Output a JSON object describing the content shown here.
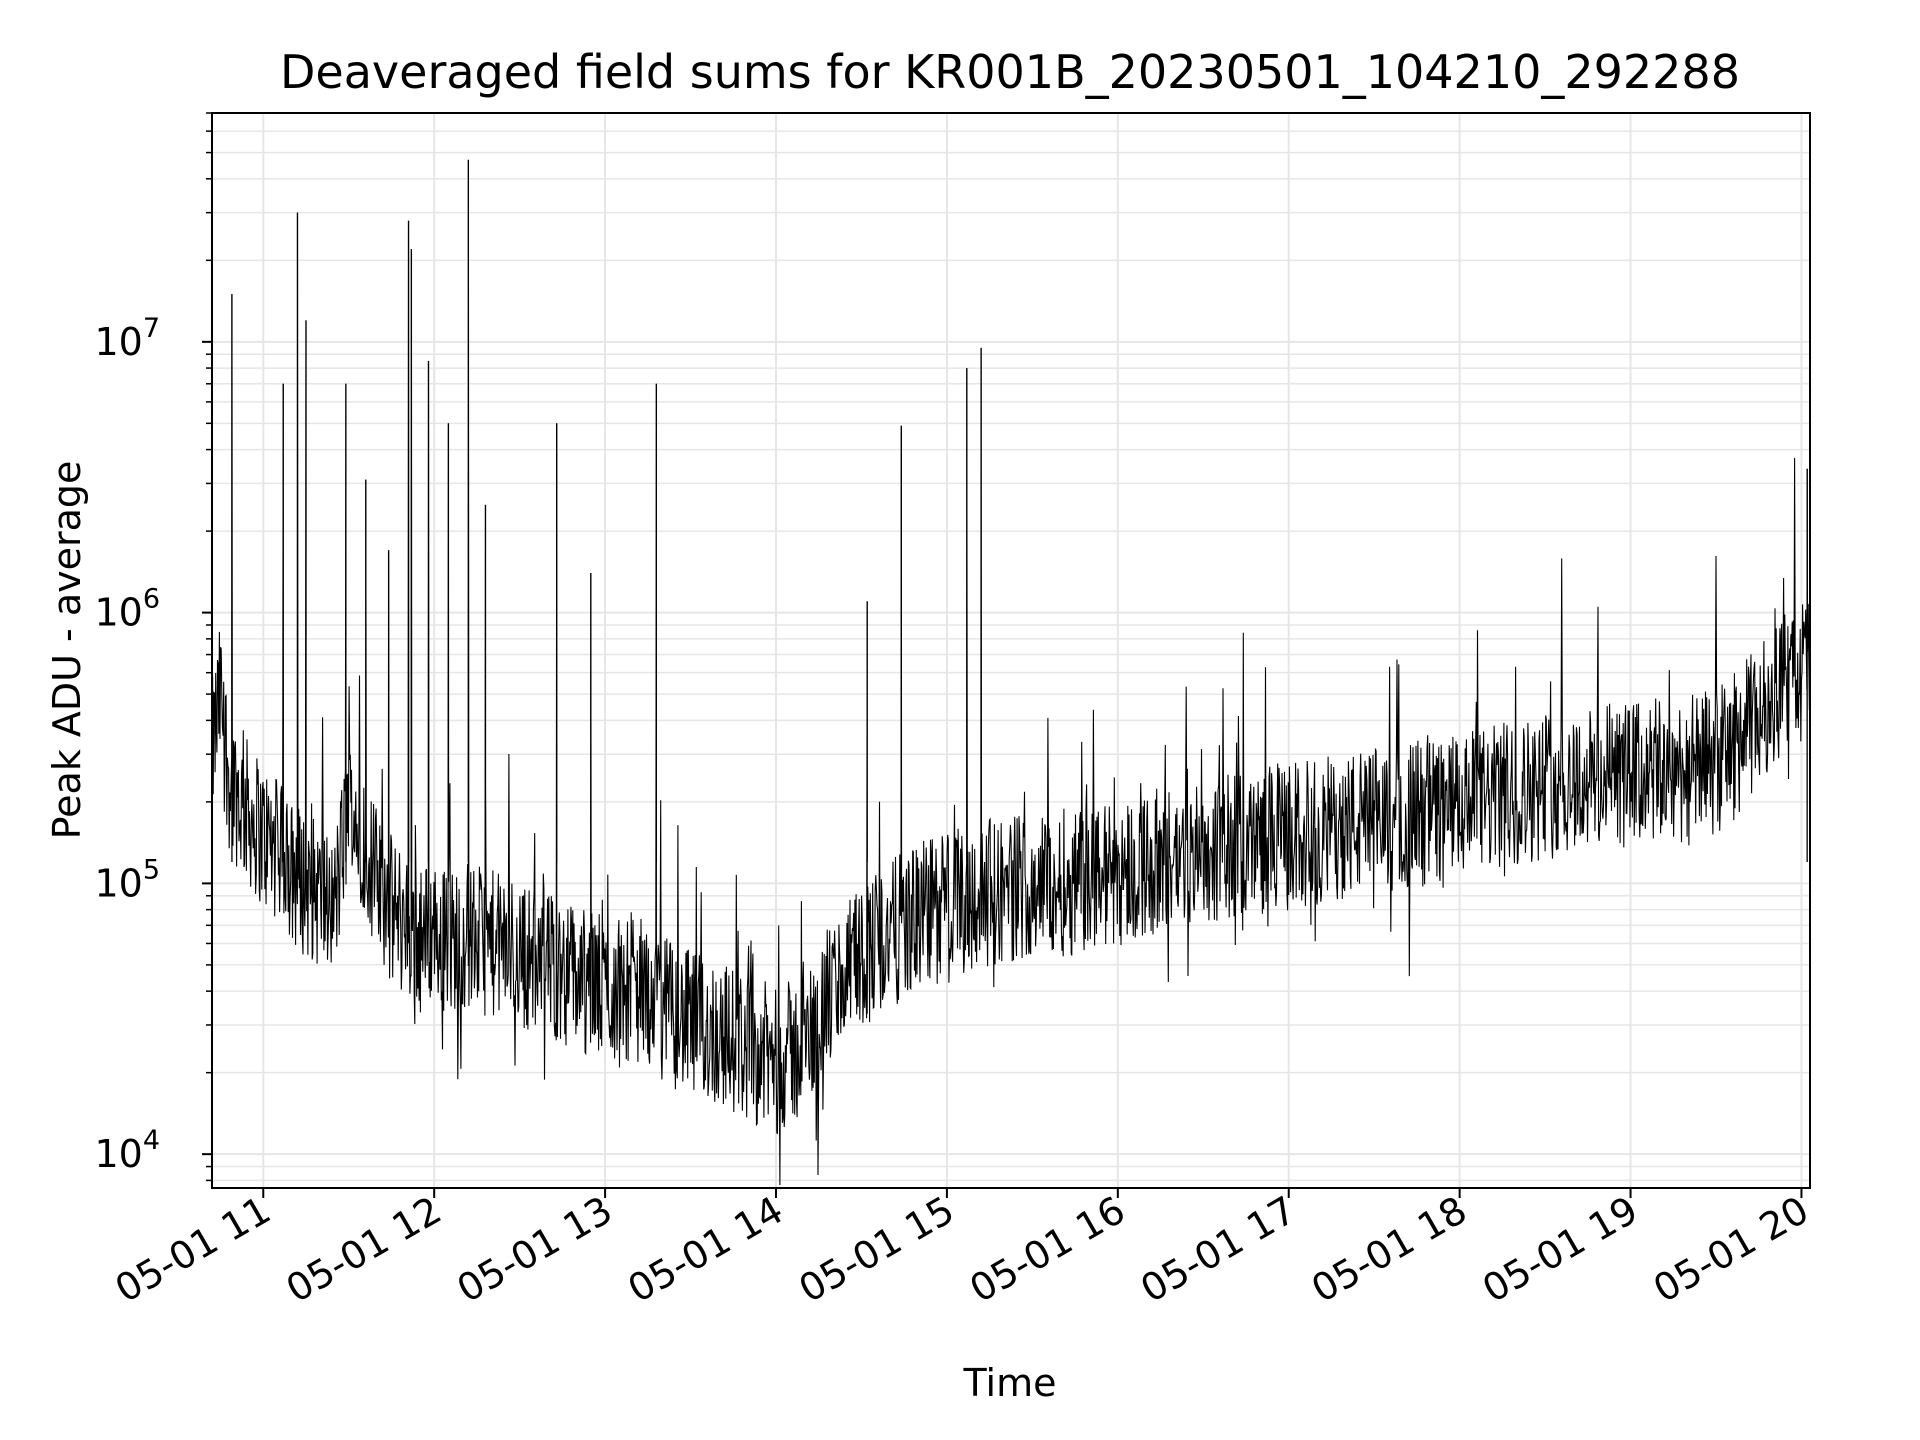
{
  "chart_data": {
    "type": "line",
    "title": "Deaveraged field sums for KR001B_20230501_104210_292288",
    "xlabel": "Time",
    "ylabel": "Peak ADU - average",
    "yscale": "log",
    "ylim": [
      7500,
      70000000
    ],
    "xlim": [
      "2023-05-01 10:42",
      "2023-05-01 20:03"
    ],
    "x_ticks": [
      "05-01 11",
      "05-01 12",
      "05-01 13",
      "05-01 14",
      "05-01 15",
      "05-01 16",
      "05-01 17",
      "05-01 18",
      "05-01 19",
      "05-01 20"
    ],
    "y_ticks": [
      {
        "value": 10000,
        "base": "10",
        "exp": "4"
      },
      {
        "value": 100000,
        "base": "10",
        "exp": "5"
      },
      {
        "value": 1000000,
        "base": "10",
        "exp": "6"
      },
      {
        "value": 10000000,
        "base": "10",
        "exp": "7"
      }
    ],
    "grid": true,
    "line_color": "#000000",
    "grid_color": "#e6e6e6",
    "series": [
      {
        "x": [
          "10:42",
          "10:45",
          "10:48",
          "10:52",
          "10:55",
          "11:00",
          "11:05",
          "11:10",
          "11:15",
          "11:20",
          "11:25",
          "11:30",
          "11:35",
          "11:40",
          "11:45",
          "11:50",
          "11:55",
          "12:00",
          "12:05",
          "12:10",
          "12:20",
          "12:30",
          "12:40",
          "12:50",
          "13:00",
          "13:10",
          "13:20",
          "13:30",
          "13:40",
          "13:50",
          "14:00",
          "14:10",
          "14:20",
          "14:30",
          "14:40",
          "14:50",
          "15:00",
          "15:10",
          "15:20",
          "15:30",
          "15:40",
          "15:50",
          "16:00",
          "16:15",
          "16:30",
          "16:45",
          "17:00",
          "17:15",
          "17:30",
          "17:45",
          "18:00",
          "18:15",
          "18:30",
          "18:45",
          "19:00",
          "19:15",
          "19:30",
          "19:40",
          "19:50",
          "20:00",
          "20:03"
        ],
        "y": [
          300000,
          500000,
          250000,
          200000,
          180000,
          150000,
          130000,
          110000,
          100000,
          90000,
          80000,
          200000,
          150000,
          100000,
          80000,
          70000,
          60000,
          70000,
          60000,
          65000,
          60000,
          55000,
          50000,
          45000,
          40000,
          42000,
          35000,
          30000,
          28000,
          25000,
          22000,
          25000,
          40000,
          55000,
          65000,
          75000,
          85000,
          90000,
          95000,
          100000,
          100000,
          105000,
          110000,
          120000,
          130000,
          140000,
          150000,
          160000,
          170000,
          180000,
          190000,
          210000,
          230000,
          240000,
          250000,
          260000,
          280000,
          350000,
          500000,
          600000,
          700000
        ]
      }
    ],
    "spikes": [
      {
        "x": "10:49",
        "y": 15000000
      },
      {
        "x": "11:07",
        "y": 7000000
      },
      {
        "x": "11:12",
        "y": 30000000
      },
      {
        "x": "11:15",
        "y": 12000000
      },
      {
        "x": "11:29",
        "y": 7000000
      },
      {
        "x": "11:36",
        "y": 3100000
      },
      {
        "x": "11:44",
        "y": 1700000
      },
      {
        "x": "11:51",
        "y": 28000000
      },
      {
        "x": "11:52",
        "y": 22000000
      },
      {
        "x": "11:58",
        "y": 8500000
      },
      {
        "x": "12:05",
        "y": 5000000
      },
      {
        "x": "12:12",
        "y": 47000000
      },
      {
        "x": "12:18",
        "y": 2500000
      },
      {
        "x": "12:43",
        "y": 5000000
      },
      {
        "x": "12:55",
        "y": 1400000
      },
      {
        "x": "13:18",
        "y": 7000000
      },
      {
        "x": "14:32",
        "y": 1100000
      },
      {
        "x": "14:44",
        "y": 4900000
      },
      {
        "x": "15:07",
        "y": 8000000
      },
      {
        "x": "15:12",
        "y": 9500000
      },
      {
        "x": "20:02",
        "y": 3400000
      }
    ]
  }
}
